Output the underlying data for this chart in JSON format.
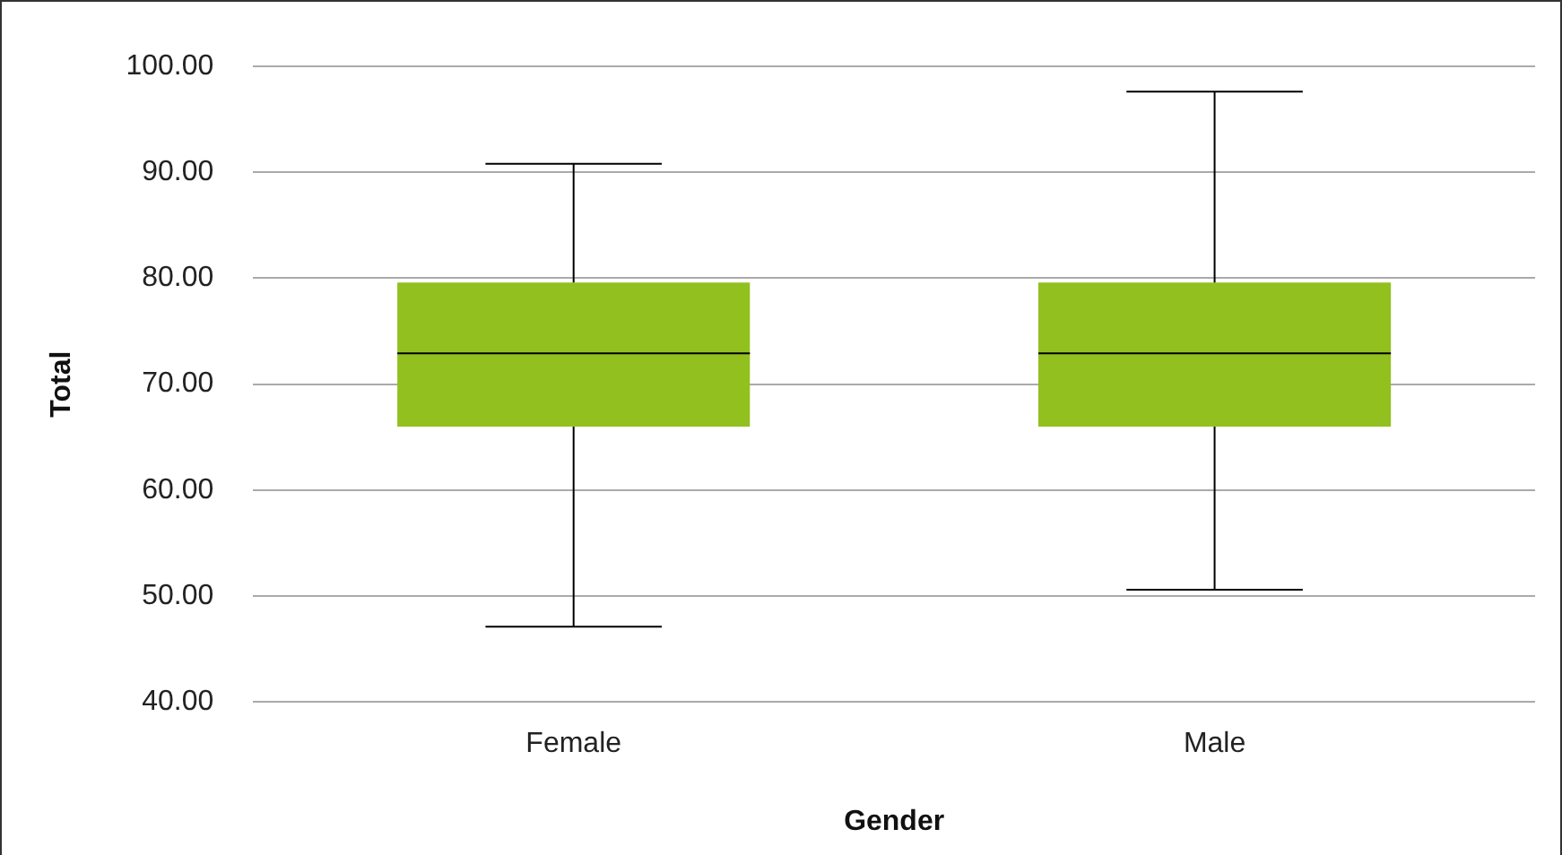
{
  "chart_data": {
    "type": "box",
    "xlabel": "Gender",
    "ylabel": "Total",
    "categories": [
      "Female",
      "Male"
    ],
    "color": "#92c01f",
    "boxes": [
      {
        "low": 47.1,
        "q1": 66,
        "median": 72.9,
        "q3": 79.6,
        "high": 90.8
      },
      {
        "low": 50.6,
        "q1": 66,
        "median": 72.9,
        "q3": 79.6,
        "high": 97.6
      }
    ],
    "ylim": [
      40,
      100
    ],
    "yticks": [
      {
        "value": 40,
        "label": "40.00"
      },
      {
        "value": 50,
        "label": "50.00"
      },
      {
        "value": 60,
        "label": "60.00"
      },
      {
        "value": 70,
        "label": "70.00"
      },
      {
        "value": 80,
        "label": "80.00"
      },
      {
        "value": 90,
        "label": "90.00"
      },
      {
        "value": 100,
        "label": "100.00"
      }
    ],
    "grid": "y",
    "legend": false
  }
}
